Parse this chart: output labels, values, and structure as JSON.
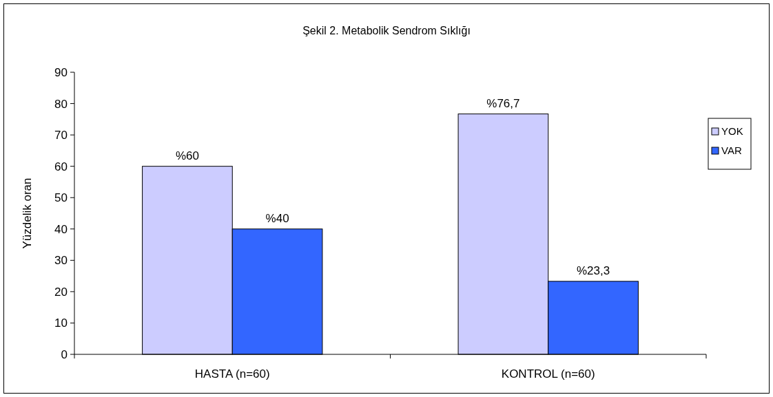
{
  "chart_data": {
    "type": "bar",
    "title": "Şekil 2. Metabolik Sendrom Sıklığı",
    "ylabel": "Yüzdelik oran",
    "categories": [
      "HASTA (n=60)",
      "KONTROL (n=60)"
    ],
    "series": [
      {
        "name": "YOK",
        "color": "#ccccff",
        "values": [
          60,
          76.7
        ],
        "value_labels": [
          "%60",
          "%76,7"
        ]
      },
      {
        "name": "VAR",
        "color": "#3366ff",
        "values": [
          40,
          23.3
        ],
        "value_labels": [
          "%40",
          "%23,3"
        ]
      }
    ],
    "ylim": [
      0,
      90
    ],
    "yticks": [
      0,
      10,
      20,
      30,
      40,
      50,
      60,
      70,
      80,
      90
    ],
    "legend": "right"
  }
}
